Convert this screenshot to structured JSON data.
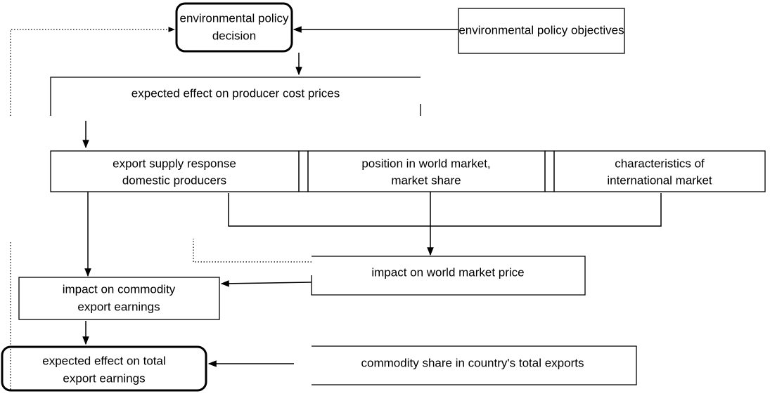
{
  "nodes": [
    {
      "lines": [
        "environmental policy",
        "decision"
      ]
    },
    {
      "lines": [
        "environmental policy objectives"
      ]
    },
    {
      "lines": [
        "expected effect on producer cost prices"
      ]
    },
    {
      "lines": [
        "export supply response",
        "domestic producers"
      ]
    },
    {
      "lines": [
        "position in world market,",
        "market share"
      ]
    },
    {
      "lines": [
        "characteristics of",
        "international market"
      ]
    },
    {
      "lines": [
        "impact on world market price"
      ]
    },
    {
      "lines": [
        "impact on commodity",
        "export earnings"
      ]
    },
    {
      "lines": [
        "expected effect on total",
        "export earnings"
      ]
    },
    {
      "lines": [
        "commodity share in country's total exports"
      ]
    }
  ]
}
